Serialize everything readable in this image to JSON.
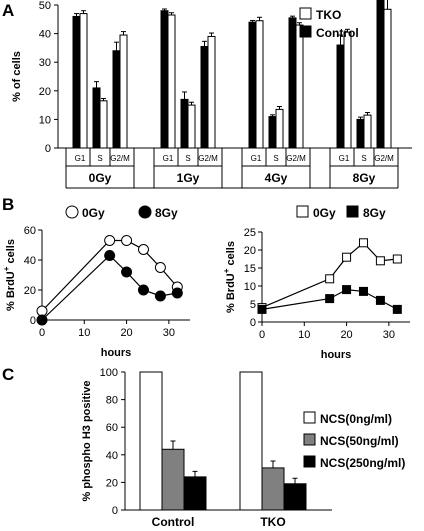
{
  "panels": {
    "a": "A",
    "b": "B",
    "c": "C"
  },
  "chart_data": [
    {
      "id": "A",
      "type": "bar",
      "ylabel": "% of cells",
      "ylim": [
        0,
        50
      ],
      "yticks": [
        0,
        10,
        20,
        30,
        40,
        50
      ],
      "ytick_labels": [
        "0",
        "10",
        "20",
        "30",
        "40",
        "50"
      ],
      "phases": [
        "G1",
        "S",
        "G2/M"
      ],
      "doses": [
        "0Gy",
        "1Gy",
        "4Gy",
        "8Gy"
      ],
      "legend_position": "top-right",
      "series": [
        {
          "name": "TKO",
          "color": "#ffffff",
          "values": [
            [
              47,
              16.5,
              39.5
            ],
            [
              46.5,
              15,
              39
            ],
            [
              44.5,
              13.5,
              43
            ],
            [
              40.5,
              11.5,
              48.5
            ]
          ],
          "errors": [
            [
              1,
              0.8,
              1.2
            ],
            [
              0.8,
              1,
              1.2
            ],
            [
              1.2,
              1,
              0.8
            ],
            [
              1,
              0.9,
              6
            ]
          ]
        },
        {
          "name": "Control",
          "color": "#000000",
          "values": [
            [
              46,
              21,
              34
            ],
            [
              48,
              17,
              35.5
            ],
            [
              44,
              11,
              45.5
            ],
            [
              36,
              10,
              55
            ]
          ],
          "errors": [
            [
              1,
              2.2,
              3
            ],
            [
              0.6,
              2.6,
              1.8
            ],
            [
              0.6,
              0.6,
              0.6
            ],
            [
              3.5,
              0.8,
              3.5
            ]
          ]
        }
      ]
    },
    {
      "id": "B-left",
      "type": "line",
      "xlabel": "hours",
      "ylabel": "% BrdU+ cells",
      "ylabel_main": "% BrdU",
      "ylabel_sup": "+",
      "ylabel_tail": " cells",
      "xlim": [
        0,
        35
      ],
      "xticks": [
        0,
        10,
        20,
        30
      ],
      "ylim": [
        0,
        60
      ],
      "yticks": [
        0,
        20,
        40,
        60
      ],
      "legend_position": "top",
      "series": [
        {
          "name": "0Gy",
          "marker": "open-circle",
          "x": [
            0,
            16,
            20,
            24,
            28,
            32
          ],
          "y": [
            6,
            53,
            53,
            47,
            35,
            22
          ]
        },
        {
          "name": "8Gy",
          "marker": "filled-circle",
          "x": [
            0,
            16,
            20,
            24,
            28,
            32
          ],
          "y": [
            0,
            43,
            32,
            20,
            16,
            18
          ]
        }
      ]
    },
    {
      "id": "B-right",
      "type": "line",
      "xlabel": "hours",
      "ylabel": "% BrdU+ cells",
      "ylabel_main": "% BrdU",
      "ylabel_sup": "+",
      "ylabel_tail": " cells",
      "xlim": [
        0,
        35
      ],
      "xticks": [
        0,
        10,
        20,
        30
      ],
      "ylim": [
        0,
        25
      ],
      "yticks": [
        0,
        5,
        10,
        15,
        20,
        25
      ],
      "legend_position": "top",
      "series": [
        {
          "name": "0Gy",
          "marker": "open-square",
          "x": [
            0,
            16,
            20,
            24,
            28,
            32
          ],
          "y": [
            4,
            12,
            18,
            22,
            17,
            17.5
          ]
        },
        {
          "name": "8Gy",
          "marker": "filled-square",
          "x": [
            0,
            16,
            20,
            24,
            28,
            32
          ],
          "y": [
            3.5,
            6.5,
            9,
            8.5,
            6,
            3.5
          ]
        }
      ]
    },
    {
      "id": "C",
      "type": "bar",
      "ylabel": "% phospho H3 positive",
      "ylim": [
        0,
        100
      ],
      "yticks": [
        0,
        20,
        40,
        60,
        80,
        100
      ],
      "categories": [
        "Control",
        "TKO"
      ],
      "legend_position": "right",
      "series": [
        {
          "name": "NCS(0ng/ml)",
          "color": "#ffffff",
          "values": [
            100,
            100
          ],
          "errors": [
            0,
            0
          ]
        },
        {
          "name": "NCS(50ng/ml)",
          "color": "#808080",
          "values": [
            44,
            30.5
          ],
          "errors": [
            6,
            5
          ]
        },
        {
          "name": "NCS(250ng/ml)",
          "color": "#000000",
          "values": [
            24,
            19
          ],
          "errors": [
            4,
            4
          ]
        }
      ]
    }
  ]
}
